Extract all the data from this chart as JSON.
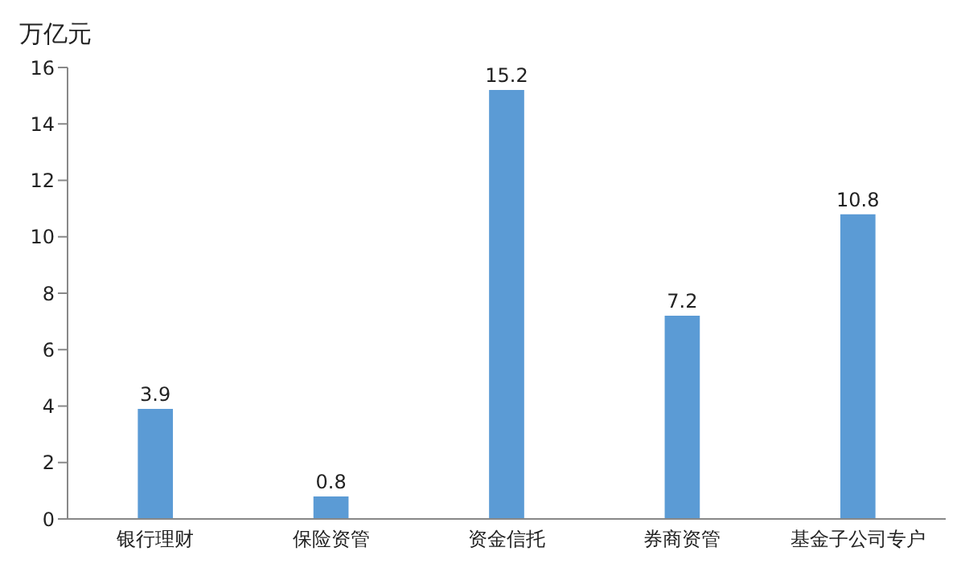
{
  "chart_data": {
    "type": "bar",
    "ylabel": "万亿元",
    "categories": [
      "银行理财",
      "保险资管",
      "资金信托",
      "券商资管",
      "基金子公司专户"
    ],
    "values": [
      3.9,
      0.8,
      15.2,
      7.2,
      10.8
    ],
    "color": "#5b9bd5",
    "ylim": [
      0,
      16
    ],
    "yticks": [
      0,
      2,
      4,
      6,
      8,
      10,
      12,
      14,
      16
    ],
    "grid": false,
    "data_labels": true
  }
}
